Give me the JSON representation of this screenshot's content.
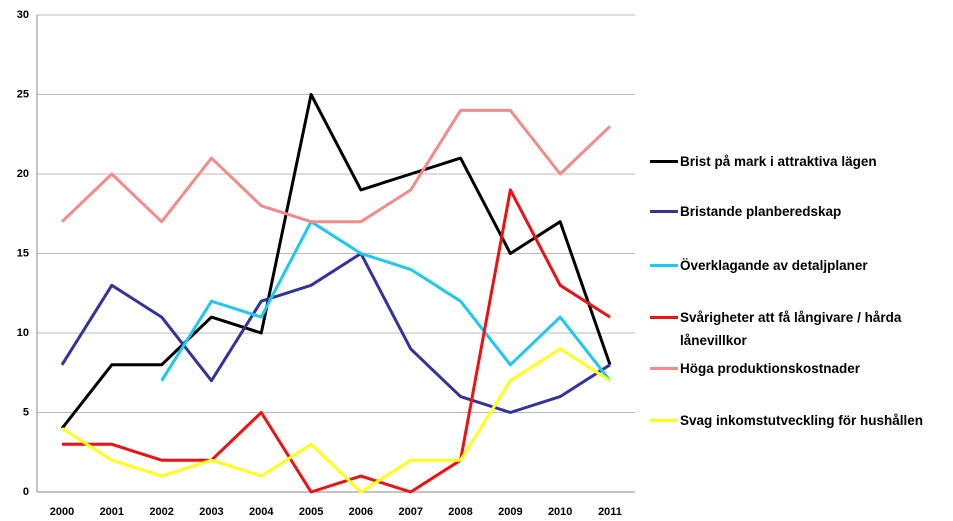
{
  "chart_data": {
    "type": "line",
    "categories": [
      "2000",
      "2001",
      "2002",
      "2003",
      "2004",
      "2005",
      "2006",
      "2007",
      "2008",
      "2009",
      "2010",
      "2011"
    ],
    "ylim": [
      0,
      30
    ],
    "yticks": [
      0,
      5,
      10,
      15,
      20,
      25,
      30
    ],
    "grid": true,
    "legend": "right",
    "series": [
      {
        "name": "Brist på mark i attraktiva lägen",
        "color": "#000000",
        "values": [
          4,
          8,
          8,
          11,
          10,
          25,
          19,
          20,
          21,
          15,
          17,
          8
        ]
      },
      {
        "name": "Bristande planberedskap",
        "color": "#333399",
        "values": [
          8,
          13,
          11,
          7,
          12,
          13,
          15,
          9,
          6,
          5,
          6,
          8
        ]
      },
      {
        "name": "Överklagande av detaljplaner",
        "color": "#1ec8f0",
        "values": [
          null,
          null,
          7,
          12,
          11,
          17,
          15,
          14,
          12,
          8,
          11,
          7
        ]
      },
      {
        "name": "Svårigheter att få långivare / hårda lånevillkor",
        "color": "#ee1111",
        "values": [
          3,
          3,
          2,
          2,
          5,
          0,
          1,
          0,
          2,
          19,
          13,
          11
        ]
      },
      {
        "name": "Höga produktionskostnader",
        "color": "#f58a8a",
        "values": [
          17,
          20,
          17,
          21,
          18,
          17,
          17,
          19,
          24,
          24,
          20,
          23
        ]
      },
      {
        "name": "Svag inkomstutveckling för hushållen",
        "color": "#ffff1a",
        "values": [
          4,
          2,
          1,
          2,
          1,
          3,
          0,
          2,
          2,
          7,
          9,
          7
        ]
      }
    ]
  }
}
